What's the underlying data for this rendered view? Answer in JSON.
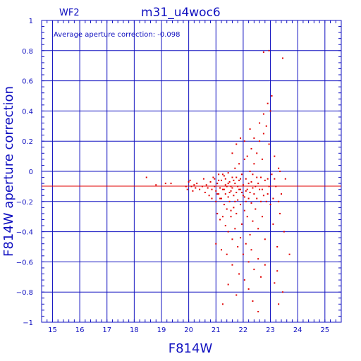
{
  "chart_data": {
    "type": "scatter",
    "title": "m31_u4woc6",
    "panel_label": "WF2",
    "xlabel": "F814W",
    "ylabel": "F814W aperture correction",
    "annotation": "Average aperture correction: -0.098",
    "xlim": [
      14.6,
      25.6
    ],
    "ylim": [
      -1,
      1
    ],
    "xticks": [
      15,
      16,
      17,
      18,
      19,
      20,
      21,
      22,
      23,
      24,
      25
    ],
    "yticks": [
      -1,
      -0.8,
      -0.6,
      -0.4,
      -0.2,
      0,
      0.2,
      0.4,
      0.6,
      0.8,
      1
    ],
    "ytick_labels": [
      "−1",
      "−0.8",
      "−0.6",
      "−0.4",
      "−0.2",
      "0",
      "0.2",
      "0.4",
      "0.6",
      "0.8",
      "1"
    ],
    "grid": true,
    "reference_line": {
      "y": -0.098,
      "color": "#e00000"
    },
    "axis_color": "#1010c0",
    "point_color": "#e00000",
    "points": [
      [
        18.45,
        -0.04
      ],
      [
        18.8,
        -0.09
      ],
      [
        19.15,
        -0.08
      ],
      [
        19.35,
        -0.08
      ],
      [
        19.9,
        -0.1
      ],
      [
        19.95,
        -0.12
      ],
      [
        20.0,
        -0.07
      ],
      [
        20.05,
        -0.06
      ],
      [
        20.1,
        -0.1
      ],
      [
        20.15,
        -0.13
      ],
      [
        20.2,
        -0.09
      ],
      [
        20.25,
        -0.11
      ],
      [
        20.3,
        -0.08
      ],
      [
        20.4,
        -0.12
      ],
      [
        20.5,
        -0.1
      ],
      [
        20.55,
        -0.05
      ],
      [
        20.6,
        -0.14
      ],
      [
        20.65,
        -0.09
      ],
      [
        20.7,
        -0.11
      ],
      [
        20.75,
        -0.16
      ],
      [
        20.8,
        -0.07
      ],
      [
        20.85,
        -0.12
      ],
      [
        20.9,
        -0.04
      ],
      [
        20.95,
        -0.1
      ],
      [
        21.0,
        -0.13
      ],
      [
        21.0,
        -0.2
      ],
      [
        21.05,
        -0.08
      ],
      [
        21.1,
        -0.15
      ],
      [
        21.1,
        -0.02
      ],
      [
        21.15,
        -0.11
      ],
      [
        21.2,
        -0.18
      ],
      [
        21.2,
        -0.06
      ],
      [
        21.25,
        -0.12
      ],
      [
        21.3,
        -0.22
      ],
      [
        21.3,
        -0.03
      ],
      [
        21.35,
        -0.09
      ],
      [
        21.35,
        -0.15
      ],
      [
        21.4,
        -0.25
      ],
      [
        21.4,
        -0.1
      ],
      [
        21.45,
        -0.01
      ],
      [
        21.45,
        -0.17
      ],
      [
        21.5,
        -0.07
      ],
      [
        21.5,
        -0.2
      ],
      [
        21.55,
        -0.13
      ],
      [
        21.55,
        -0.3
      ],
      [
        21.6,
        -0.04
      ],
      [
        21.6,
        -0.11
      ],
      [
        21.65,
        -0.24
      ],
      [
        21.65,
        -0.16
      ],
      [
        21.7,
        -0.08
      ],
      [
        21.7,
        0.02
      ],
      [
        21.75,
        -0.14
      ],
      [
        21.75,
        -0.28
      ],
      [
        21.8,
        -0.1
      ],
      [
        21.8,
        -0.19
      ],
      [
        21.85,
        0.05
      ],
      [
        21.85,
        -0.06
      ],
      [
        21.9,
        -0.22
      ],
      [
        21.9,
        -0.12
      ],
      [
        21.95,
        -0.35
      ],
      [
        21.95,
        -0.02
      ],
      [
        22.0,
        -0.16
      ],
      [
        22.0,
        -0.09
      ],
      [
        22.05,
        0.08
      ],
      [
        22.05,
        -0.26
      ],
      [
        22.1,
        -0.13
      ],
      [
        22.1,
        -0.05
      ],
      [
        22.15,
        -0.3
      ],
      [
        22.15,
        0.1
      ],
      [
        22.2,
        -0.18
      ],
      [
        22.2,
        -0.08
      ],
      [
        22.25,
        -0.42
      ],
      [
        22.25,
        0.0
      ],
      [
        22.3,
        -0.21
      ],
      [
        22.3,
        0.15
      ],
      [
        22.35,
        -0.11
      ],
      [
        22.35,
        -0.33
      ],
      [
        22.4,
        0.05
      ],
      [
        22.4,
        -0.15
      ],
      [
        22.45,
        -0.25
      ],
      [
        22.5,
        0.12
      ],
      [
        22.5,
        -0.04
      ],
      [
        22.55,
        -0.38
      ],
      [
        22.6,
        0.2
      ],
      [
        22.6,
        -0.12
      ],
      [
        22.65,
        -0.2
      ],
      [
        22.7,
        0.08
      ],
      [
        22.7,
        -0.3
      ],
      [
        22.75,
        0.25
      ],
      [
        22.8,
        -0.06
      ],
      [
        22.8,
        -0.45
      ],
      [
        22.85,
        0.3
      ],
      [
        22.9,
        -0.15
      ],
      [
        22.95,
        0.18
      ],
      [
        23.0,
        -0.22
      ],
      [
        23.0,
        0.4
      ],
      [
        23.05,
        -0.02
      ],
      [
        23.1,
        -0.35
      ],
      [
        23.15,
        0.1
      ],
      [
        23.2,
        -0.1
      ],
      [
        23.25,
        -0.5
      ],
      [
        23.3,
        0.02
      ],
      [
        23.35,
        -0.28
      ],
      [
        23.4,
        -0.15
      ],
      [
        23.5,
        -0.4
      ],
      [
        23.55,
        -0.05
      ],
      [
        23.7,
        -0.55
      ],
      [
        21.05,
        -0.28
      ],
      [
        21.15,
        -0.32
      ],
      [
        21.25,
        -0.3
      ],
      [
        21.35,
        -0.36
      ],
      [
        21.45,
        -0.4
      ],
      [
        21.55,
        -0.26
      ],
      [
        21.6,
        -0.45
      ],
      [
        21.7,
        -0.38
      ],
      [
        21.8,
        -0.5
      ],
      [
        21.9,
        -0.44
      ],
      [
        22.0,
        -0.55
      ],
      [
        22.1,
        -0.48
      ],
      [
        22.2,
        -0.6
      ],
      [
        22.3,
        -0.52
      ],
      [
        22.4,
        -0.65
      ],
      [
        22.55,
        -0.58
      ],
      [
        22.65,
        -0.7
      ],
      [
        22.8,
        -0.62
      ],
      [
        21.0,
        -0.48
      ],
      [
        21.2,
        -0.52
      ],
      [
        21.4,
        -0.55
      ],
      [
        21.6,
        -0.62
      ],
      [
        21.85,
        -0.68
      ],
      [
        22.05,
        -0.72
      ],
      [
        21.25,
        -0.88
      ],
      [
        21.45,
        -0.75
      ],
      [
        21.75,
        -0.82
      ],
      [
        22.2,
        -0.78
      ],
      [
        22.35,
        -0.86
      ],
      [
        22.55,
        -0.93
      ],
      [
        23.15,
        -0.74
      ],
      [
        23.3,
        -0.88
      ],
      [
        23.45,
        -0.8
      ],
      [
        23.25,
        -0.66
      ],
      [
        21.6,
        0.12
      ],
      [
        21.75,
        0.18
      ],
      [
        21.9,
        0.22
      ],
      [
        22.05,
        0.2
      ],
      [
        22.25,
        0.28
      ],
      [
        22.4,
        0.22
      ],
      [
        22.6,
        0.32
      ],
      [
        22.75,
        0.38
      ],
      [
        22.9,
        0.45
      ],
      [
        23.05,
        0.5
      ],
      [
        22.95,
        0.8
      ],
      [
        22.75,
        0.79
      ],
      [
        23.45,
        0.75
      ],
      [
        21.1,
        -0.06
      ],
      [
        21.3,
        -0.12
      ],
      [
        21.5,
        -0.14
      ],
      [
        21.7,
        -0.2
      ],
      [
        21.9,
        -0.05
      ],
      [
        22.1,
        -0.2
      ],
      [
        22.3,
        -0.07
      ],
      [
        22.5,
        -0.18
      ],
      [
        22.7,
        -0.12
      ],
      [
        22.9,
        -0.05
      ],
      [
        23.1,
        -0.18
      ],
      [
        23.3,
        -0.2
      ],
      [
        21.15,
        -0.18
      ],
      [
        21.35,
        -0.05
      ],
      [
        21.55,
        -0.1
      ],
      [
        21.75,
        -0.04
      ],
      [
        21.95,
        -0.14
      ],
      [
        22.15,
        -0.12
      ],
      [
        22.35,
        -0.02
      ],
      [
        22.55,
        -0.08
      ],
      [
        22.75,
        -0.16
      ],
      [
        22.95,
        -0.1
      ],
      [
        23.15,
        -0.05
      ],
      [
        23.35,
        0.0
      ],
      [
        20.85,
        -0.18
      ],
      [
        20.95,
        -0.05
      ],
      [
        21.05,
        -0.15
      ],
      [
        21.25,
        -0.02
      ],
      [
        21.45,
        -0.08
      ],
      [
        21.65,
        -0.06
      ],
      [
        21.85,
        -0.12
      ],
      [
        22.05,
        -0.17
      ],
      [
        22.25,
        -0.14
      ],
      [
        22.45,
        -0.1
      ],
      [
        22.65,
        -0.04
      ],
      [
        22.85,
        -0.2
      ]
    ]
  }
}
